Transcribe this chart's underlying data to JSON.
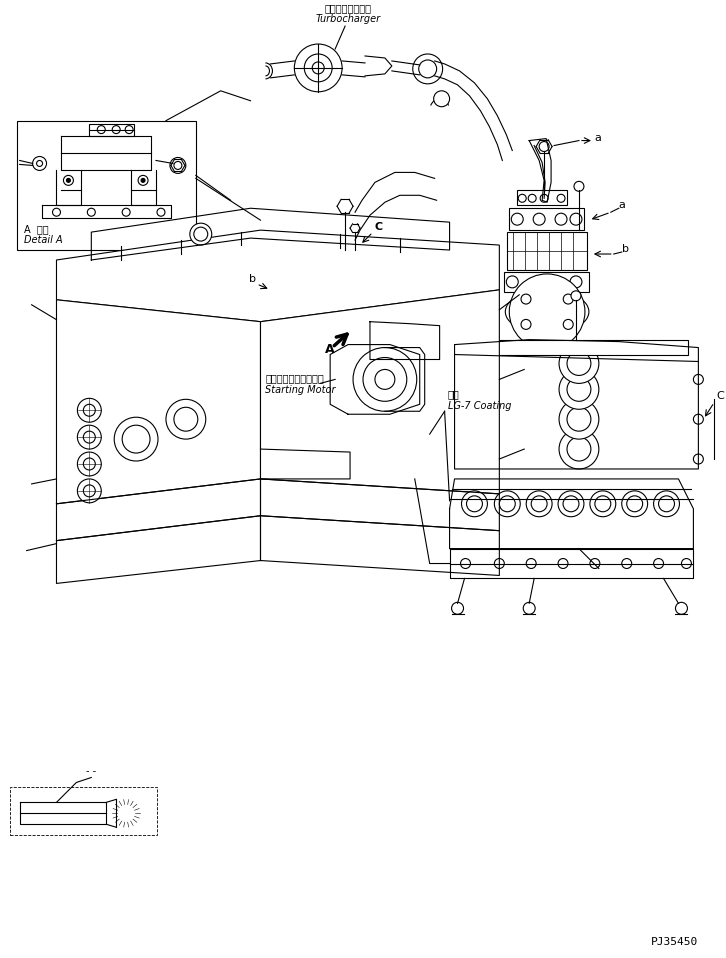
{
  "bg_color": "#ffffff",
  "line_color": "#000000",
  "fig_width": 7.26,
  "fig_height": 9.58,
  "dpi": 100,
  "part_code": "PJ35450",
  "labels": {
    "turbocharger_jp": "ターボチャージャ",
    "turbocharger_en": "Turbocharger",
    "detail_a_jp": "A  詳細",
    "detail_a_en": "Detail A",
    "starting_motor_jp": "スターティングモータ",
    "starting_motor_en": "Starting Motor",
    "coating_jp": "塗布",
    "coating_en": "LG-7 Coating"
  },
  "font_sizes": {
    "label": 7,
    "part_code": 8,
    "annotation": 8
  }
}
